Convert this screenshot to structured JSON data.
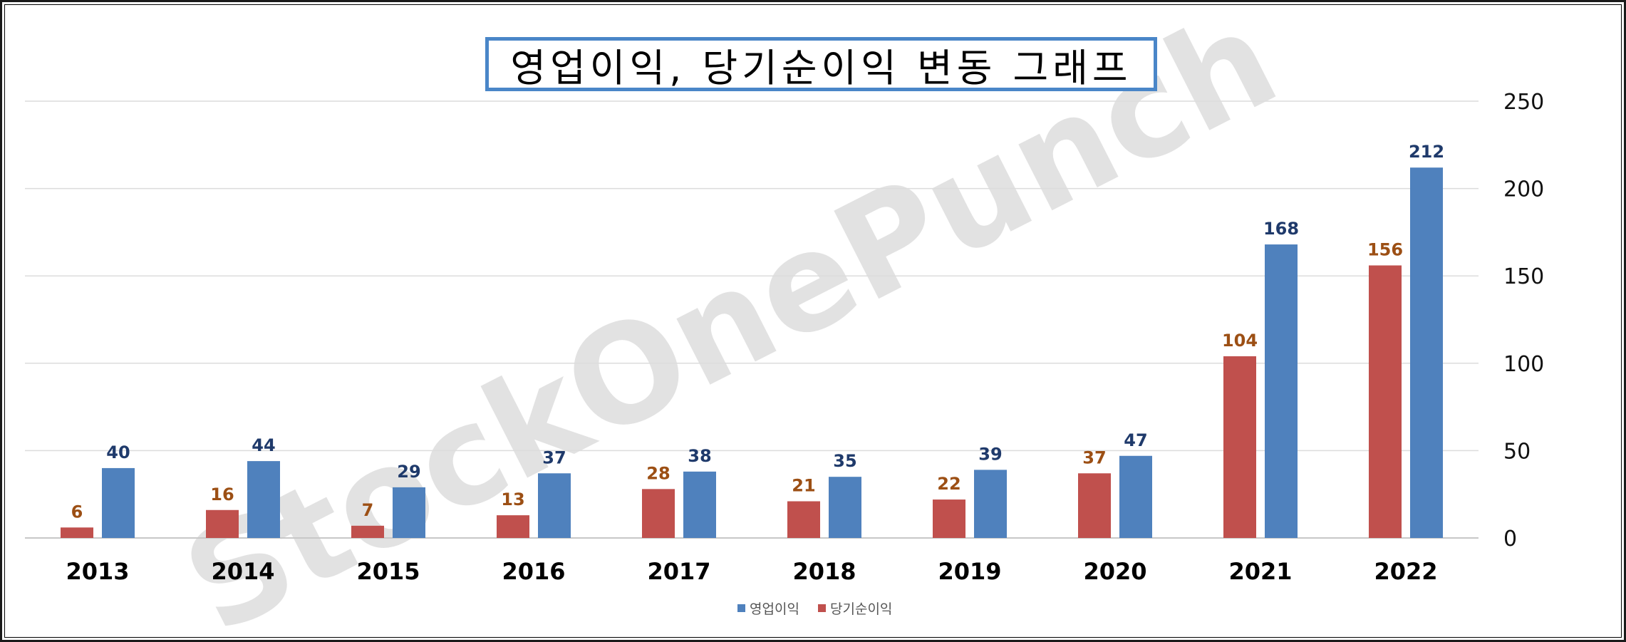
{
  "chart_data": {
    "type": "bar",
    "title": "영업이익, 당기순이익 변동 그래프",
    "categories": [
      "2013",
      "2014",
      "2015",
      "2016",
      "2017",
      "2018",
      "2019",
      "2020",
      "2021",
      "2022"
    ],
    "series": [
      {
        "name": "당기순이익",
        "color": "#c0504d",
        "values": [
          6,
          16,
          7,
          13,
          28,
          21,
          22,
          37,
          104,
          156
        ]
      },
      {
        "name": "영업이익",
        "color": "#4f81bd",
        "values": [
          40,
          44,
          29,
          37,
          38,
          35,
          39,
          47,
          168,
          212
        ]
      }
    ],
    "ylim": [
      0,
      250
    ],
    "yticks": [
      0,
      50,
      100,
      150,
      200,
      250
    ],
    "y_axis_side": "right",
    "grid": true,
    "legend": {
      "placement": "bottom",
      "order": [
        "영업이익",
        "당기순이익"
      ]
    },
    "watermark": "StockOnePunch"
  }
}
